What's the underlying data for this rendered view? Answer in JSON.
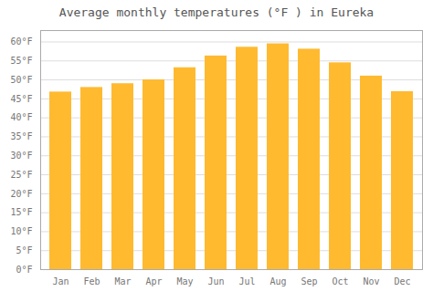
{
  "chart_data": {
    "type": "bar",
    "title": "Average monthly temperatures (°F ) in Eureka",
    "categories": [
      "Jan",
      "Feb",
      "Mar",
      "Apr",
      "May",
      "Jun",
      "Jul",
      "Aug",
      "Sep",
      "Oct",
      "Nov",
      "Dec"
    ],
    "values": [
      46.8,
      48.0,
      49.0,
      50.0,
      53.2,
      56.3,
      58.6,
      59.5,
      58.1,
      54.5,
      51.0,
      46.9
    ],
    "color": "#FFBA30",
    "ylim": [
      0,
      63
    ],
    "yticks": [
      {
        "value": 0,
        "label": "0°F"
      },
      {
        "value": 5,
        "label": "5°F"
      },
      {
        "value": 10,
        "label": "10°F"
      },
      {
        "value": 15,
        "label": "15°F"
      },
      {
        "value": 20,
        "label": "20°F"
      },
      {
        "value": 25,
        "label": "25°F"
      },
      {
        "value": 30,
        "label": "30°F"
      },
      {
        "value": 35,
        "label": "35°F"
      },
      {
        "value": 40,
        "label": "40°F"
      },
      {
        "value": 45,
        "label": "45°F"
      },
      {
        "value": 50,
        "label": "50°F"
      },
      {
        "value": 55,
        "label": "55°F"
      },
      {
        "value": 60,
        "label": "60°F"
      }
    ],
    "grid": true
  }
}
